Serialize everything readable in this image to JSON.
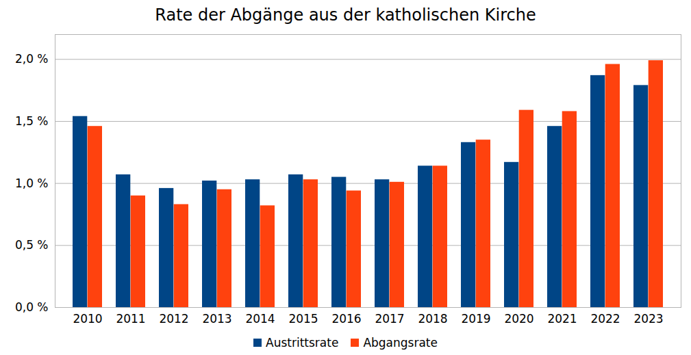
{
  "chart_data": {
    "type": "bar",
    "title": "Rate der Abgänge aus der katholischen Kirche",
    "categories": [
      "2010",
      "2011",
      "2012",
      "2013",
      "2014",
      "2015",
      "2016",
      "2017",
      "2018",
      "2019",
      "2020",
      "2021",
      "2022",
      "2023"
    ],
    "series": [
      {
        "name": "Austrittsrate",
        "color": "#004586",
        "values": [
          1.54,
          1.07,
          0.96,
          1.02,
          1.03,
          1.07,
          1.05,
          1.03,
          1.14,
          1.33,
          1.17,
          1.46,
          1.87,
          1.79
        ]
      },
      {
        "name": "Abgangsrate",
        "color": "#ff420e",
        "values": [
          1.46,
          0.9,
          0.83,
          0.95,
          0.82,
          1.03,
          0.94,
          1.01,
          1.14,
          1.35,
          1.59,
          1.58,
          1.96,
          1.99
        ]
      }
    ],
    "ylim": [
      0,
      2.2
    ],
    "yticks": [
      {
        "value": 0,
        "label": "0,0 %"
      },
      {
        "value": 0.5,
        "label": "0,5 %"
      },
      {
        "value": 1,
        "label": "1,0 %"
      },
      {
        "value": 1.5,
        "label": "1,5 %"
      },
      {
        "value": 2,
        "label": "2,0 %"
      }
    ],
    "grid": true,
    "legend": "bottom"
  }
}
